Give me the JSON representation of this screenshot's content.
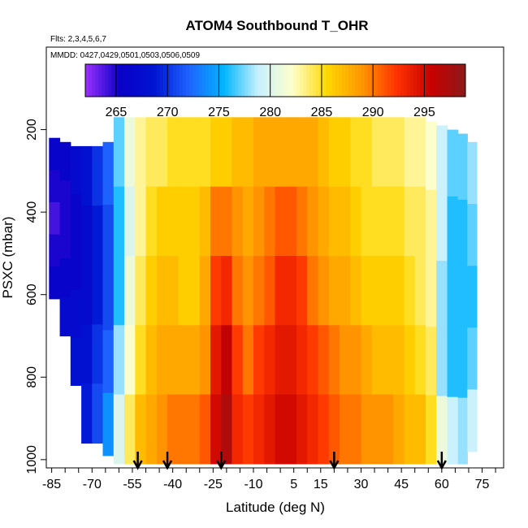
{
  "chart_data": {
    "type": "heatmap",
    "title": "ATOM4 Southbound T_OHR",
    "subtitle_flights": "Flts: 2,3,4,5,6,7",
    "subtitle_dates": "MMDD: 0427,0429,0501,0503,0506,0509",
    "xlabel": "Latitude (deg N)",
    "ylabel": "PSXC (mbar)",
    "xlim": [
      -87,
      83
    ],
    "ylim": [
      1020,
      0
    ],
    "x_ticks": [
      -85,
      -70,
      -55,
      -40,
      -25,
      -10,
      5,
      15,
      30,
      45,
      60,
      75
    ],
    "y_ticks": [
      200,
      400,
      600,
      800,
      1000
    ],
    "colorbar": {
      "min": 262,
      "max": 299,
      "ticks": [
        265,
        270,
        275,
        280,
        285,
        290,
        295
      ],
      "colors": [
        "#9b30ff",
        "#0a00c8",
        "#0014d2",
        "#1e64ff",
        "#00b4ff",
        "#c8f0ff",
        "#ffffc8",
        "#ffd700",
        "#ff9600",
        "#ff3200",
        "#c80000",
        "#8b1a1a"
      ]
    },
    "profile_columns": [
      {
        "lat": -84,
        "top": 220,
        "bottom": 610,
        "temps": [
          266,
          265,
          264,
          265,
          266
        ]
      },
      {
        "lat": -80,
        "top": 230,
        "bottom": 700,
        "temps": [
          266,
          265,
          265,
          266,
          267
        ]
      },
      {
        "lat": -76,
        "top": 240,
        "bottom": 820,
        "temps": [
          267,
          266,
          266,
          267,
          268
        ]
      },
      {
        "lat": -72,
        "top": 240,
        "bottom": 960,
        "temps": [
          268,
          267,
          267,
          268,
          269
        ]
      },
      {
        "lat": -68,
        "top": 240,
        "bottom": 960,
        "temps": [
          270,
          269,
          269,
          270,
          271
        ]
      },
      {
        "lat": -64,
        "top": 230,
        "bottom": 990,
        "temps": [
          272,
          271,
          271,
          272,
          274
        ]
      },
      {
        "lat": -60,
        "top": 170,
        "bottom": 1010,
        "temps": [
          277,
          276,
          276,
          278,
          280
        ]
      },
      {
        "lat": -56,
        "top": 170,
        "bottom": 1010,
        "temps": [
          281,
          280,
          281,
          282,
          284
        ]
      },
      {
        "lat": -52,
        "top": 170,
        "bottom": 1010,
        "temps": [
          283,
          283,
          284,
          285,
          287
        ]
      },
      {
        "lat": -48,
        "top": 170,
        "bottom": 1010,
        "temps": [
          284,
          285,
          286,
          287,
          288
        ]
      },
      {
        "lat": -44,
        "top": 170,
        "bottom": 1010,
        "temps": [
          284,
          286,
          287,
          288,
          289
        ]
      },
      {
        "lat": -40,
        "top": 170,
        "bottom": 1010,
        "temps": [
          285,
          286,
          287,
          288,
          290
        ]
      },
      {
        "lat": -36,
        "top": 170,
        "bottom": 1010,
        "temps": [
          285,
          286,
          286,
          288,
          290
        ]
      },
      {
        "lat": -32,
        "top": 170,
        "bottom": 1010,
        "temps": [
          285,
          286,
          286,
          288,
          290
        ]
      },
      {
        "lat": -28,
        "top": 170,
        "bottom": 1010,
        "temps": [
          285,
          287,
          288,
          289,
          291
        ]
      },
      {
        "lat": -24,
        "top": 170,
        "bottom": 1010,
        "temps": [
          286,
          290,
          292,
          294,
          295
        ]
      },
      {
        "lat": -20,
        "top": 170,
        "bottom": 1010,
        "temps": [
          286,
          290,
          293,
          296,
          297
        ]
      },
      {
        "lat": -16,
        "top": 170,
        "bottom": 1010,
        "temps": [
          287,
          289,
          290,
          292,
          293
        ]
      },
      {
        "lat": -12,
        "top": 170,
        "bottom": 1010,
        "temps": [
          287,
          288,
          289,
          290,
          292
        ]
      },
      {
        "lat": -8,
        "top": 170,
        "bottom": 1010,
        "temps": [
          288,
          289,
          290,
          292,
          293
        ]
      },
      {
        "lat": -4,
        "top": 170,
        "bottom": 1010,
        "temps": [
          288,
          290,
          291,
          293,
          294
        ]
      },
      {
        "lat": 0,
        "top": 170,
        "bottom": 1010,
        "temps": [
          288,
          291,
          293,
          294,
          295
        ]
      },
      {
        "lat": 4,
        "top": 170,
        "bottom": 1010,
        "temps": [
          288,
          291,
          293,
          294,
          295
        ]
      },
      {
        "lat": 8,
        "top": 170,
        "bottom": 1010,
        "temps": [
          288,
          290,
          292,
          293,
          294
        ]
      },
      {
        "lat": 12,
        "top": 170,
        "bottom": 1010,
        "temps": [
          288,
          289,
          290,
          292,
          293
        ]
      },
      {
        "lat": 16,
        "top": 170,
        "bottom": 1010,
        "temps": [
          287,
          288,
          289,
          291,
          292
        ]
      },
      {
        "lat": 20,
        "top": 170,
        "bottom": 1010,
        "temps": [
          286,
          287,
          288,
          290,
          291
        ]
      },
      {
        "lat": 24,
        "top": 170,
        "bottom": 1010,
        "temps": [
          286,
          287,
          288,
          289,
          290
        ]
      },
      {
        "lat": 28,
        "top": 170,
        "bottom": 1010,
        "temps": [
          285,
          286,
          287,
          289,
          290
        ]
      },
      {
        "lat": 32,
        "top": 170,
        "bottom": 1010,
        "temps": [
          285,
          285,
          286,
          288,
          289
        ]
      },
      {
        "lat": 36,
        "top": 170,
        "bottom": 1010,
        "temps": [
          284,
          285,
          286,
          287,
          289
        ]
      },
      {
        "lat": 40,
        "top": 170,
        "bottom": 1010,
        "temps": [
          284,
          285,
          286,
          287,
          289
        ]
      },
      {
        "lat": 44,
        "top": 170,
        "bottom": 1010,
        "temps": [
          284,
          285,
          286,
          287,
          288
        ]
      },
      {
        "lat": 48,
        "top": 170,
        "bottom": 1010,
        "temps": [
          283,
          284,
          285,
          286,
          287
        ]
      },
      {
        "lat": 52,
        "top": 170,
        "bottom": 1010,
        "temps": [
          283,
          284,
          284,
          285,
          287
        ]
      },
      {
        "lat": 56,
        "top": 180,
        "bottom": 1010,
        "temps": [
          282,
          283,
          283,
          284,
          285
        ]
      },
      {
        "lat": 60,
        "top": 190,
        "bottom": 1010,
        "temps": [
          279,
          279,
          278,
          278,
          281
        ]
      },
      {
        "lat": 64,
        "top": 200,
        "bottom": 1010,
        "temps": [
          277,
          276,
          276,
          276,
          279
        ]
      },
      {
        "lat": 68,
        "top": 210,
        "bottom": 1010,
        "temps": [
          277,
          276,
          276,
          276,
          278
        ]
      },
      {
        "lat": 71,
        "top": 230,
        "bottom": 980,
        "temps": [
          278,
          277,
          276,
          277,
          279
        ]
      }
    ],
    "annotations": {
      "ground_arrows_lat": [
        -53,
        -42,
        -22,
        20,
        60
      ]
    }
  }
}
